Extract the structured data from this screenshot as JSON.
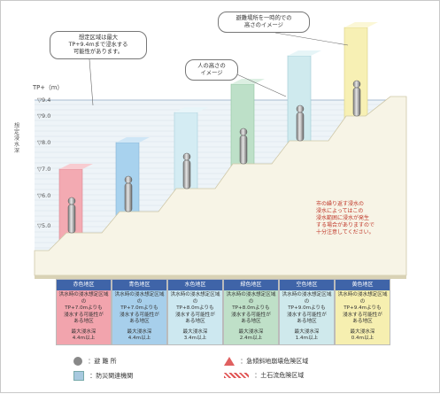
{
  "axis": {
    "title": "TP+（m）",
    "ticks": [
      "▽9.4",
      "▽9.0",
      "▽8.0",
      "▽7.0",
      "▽6.0",
      "▽5.0"
    ],
    "side_label": "想定浸水深"
  },
  "callouts": {
    "max_height": "想定区域は最大\nTP+9.4mまで浸水する\n可能性があります。",
    "person_height": "人の高さの\nイメージ",
    "colored_posts": "避難場所を一時的での\n高さのイメージ"
  },
  "note": "市の繰り返す浸水の\n浸水によってはこの\n浸水範囲に浸水が発生\nする場合がありますので\n十分注意してください。",
  "zones": [
    {
      "name": "赤色地区",
      "color": "#f2a4ad",
      "note": "洪水時の浸水想定区域の\nTP+7.0mよりも\n浸水する可能性が\nある地区",
      "depth": "最大浸水深\n4.4m以上"
    },
    {
      "name": "青色地区",
      "color": "#a7cfeb",
      "note": "洪水時の浸水想定区域の\nTP+7.0mよりも\n浸水する可能性が\nある地区",
      "depth": "最大浸水深\n4.4m以上"
    },
    {
      "name": "水色地区",
      "color": "#cde8f0",
      "note": "洪水時の浸水想定区域の\nTP+8.0mよりも\n浸水する可能性が\nある地区",
      "depth": "最大浸水深\n3.4m以上"
    },
    {
      "name": "緑色地区",
      "color": "#bfe0c8",
      "note": "洪水時の浸水想定区域の\nTP+8.0mよりも\n浸水する可能性が\nある地区",
      "depth": "最大浸水深\n2.4m以上"
    },
    {
      "name": "空色地区",
      "color": "#cfe9ec",
      "note": "洪水時の浸水想定区域の\nTP+9.0mよりも\n浸水する可能性が\nある地区",
      "depth": "最大浸水深\n1.4m以上"
    },
    {
      "name": "黄色地区",
      "color": "#f6efb0",
      "note": "洪水時の浸水想定区域の\nTP+9.4mよりも\n浸水する可能性が\nある地区",
      "depth": "最大浸水深\n0.4m以上"
    }
  ],
  "legend": {
    "shelter": "：避 難 所",
    "facility": "：防災関連機関",
    "tsunami_zone": "：急傾斜地崩壊危険区域",
    "landslide_zone": "：土石流危険区域"
  }
}
